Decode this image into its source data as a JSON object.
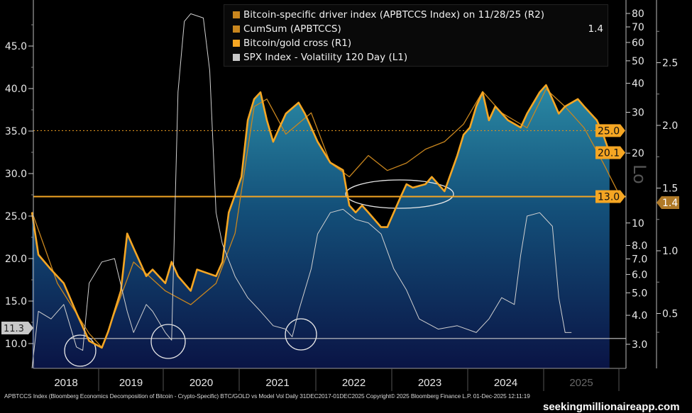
{
  "chart_data": {
    "type": "line",
    "legend_placement": "top-right",
    "grid": false,
    "x_axis": {
      "ticks": [
        "2018",
        "2019",
        "2020",
        "2021",
        "2022",
        "2023",
        "2024",
        "2025"
      ],
      "range": [
        "2017-12-31",
        "2025-12-01"
      ]
    },
    "axes": {
      "L1": {
        "ticks": [
          "10.0",
          "15.0",
          "20.0",
          "25.0",
          "30.0",
          "35.0",
          "40.0",
          "45.0"
        ],
        "scale": "linear",
        "range": [
          7,
          50
        ]
      },
      "R1": {
        "ticks": [
          "3.0",
          "4.0",
          "5.0",
          "6.0",
          "7.0",
          "8.0",
          "10",
          "20",
          "30",
          "40",
          "50",
          "60",
          "70",
          "80"
        ],
        "scale": "log",
        "range": [
          2.5,
          85
        ]
      },
      "R2": {
        "ticks": [
          "0.5",
          "1.0",
          "1.5",
          "2.0",
          "2.5"
        ],
        "scale": "linear",
        "range": [
          0.3,
          2.8
        ]
      }
    },
    "series": [
      {
        "name": "Bitcoin-specific driver index (APBTCCS Index) on 11/28/25 (R2)",
        "axis": "R2",
        "color": "#c9861e",
        "points": []
      },
      {
        "name": "CumSum (APBTCCS)",
        "axis": "R2",
        "color": "#c9861e",
        "last_value": "1.4",
        "points": [
          [
            "2018-02",
            1.31
          ],
          [
            "2018-06",
            0.74
          ],
          [
            "2018-11",
            0.34
          ],
          [
            "2019-01",
            0.23
          ],
          [
            "2019-06",
            0.91
          ],
          [
            "2019-11",
            0.68
          ],
          [
            "2020-03",
            0.57
          ],
          [
            "2020-07",
            0.74
          ],
          [
            "2020-10",
            1.14
          ],
          [
            "2021-01",
            2.15
          ],
          [
            "2021-03",
            2.21
          ],
          [
            "2021-06",
            1.93
          ],
          [
            "2021-10",
            2.1
          ],
          [
            "2022-01",
            1.7
          ],
          [
            "2022-04",
            1.59
          ],
          [
            "2022-07",
            1.76
          ],
          [
            "2022-10",
            1.64
          ],
          [
            "2023-01",
            1.7
          ],
          [
            "2023-04",
            1.81
          ],
          [
            "2023-07",
            1.87
          ],
          [
            "2023-10",
            2.01
          ],
          [
            "2024-01",
            2.27
          ],
          [
            "2024-04",
            2.1
          ],
          [
            "2024-08",
            1.98
          ],
          [
            "2024-11",
            2.29
          ],
          [
            "2025-02",
            2.15
          ],
          [
            "2025-05",
            1.98
          ],
          [
            "2025-08",
            1.7
          ],
          [
            "2025-11",
            1.4
          ]
        ]
      },
      {
        "name": "Bitcoin/gold cross (R1)",
        "axis": "R1",
        "color": "#f5a623",
        "last_value": "20.1",
        "points": [
          [
            "2018-02",
            11.1
          ],
          [
            "2018-03",
            7.3
          ],
          [
            "2018-05",
            6.3
          ],
          [
            "2018-07",
            5.5
          ],
          [
            "2018-09",
            4.1
          ],
          [
            "2018-11",
            3.1
          ],
          [
            "2019-01",
            2.9
          ],
          [
            "2019-02",
            3.4
          ],
          [
            "2019-04",
            5.1
          ],
          [
            "2019-05",
            9.0
          ],
          [
            "2019-06",
            7.8
          ],
          [
            "2019-08",
            5.9
          ],
          [
            "2019-09",
            6.3
          ],
          [
            "2019-11",
            5.5
          ],
          [
            "2019-12",
            6.8
          ],
          [
            "2020-01",
            5.9
          ],
          [
            "2020-03",
            5.1
          ],
          [
            "2020-04",
            6.3
          ],
          [
            "2020-07",
            5.9
          ],
          [
            "2020-08",
            6.8
          ],
          [
            "2020-09",
            11.1
          ],
          [
            "2020-11",
            15.8
          ],
          [
            "2020-12",
            27.7
          ],
          [
            "2021-01",
            34.2
          ],
          [
            "2021-02",
            36.6
          ],
          [
            "2021-03",
            27.7
          ],
          [
            "2021-04",
            22.4
          ],
          [
            "2021-05",
            25.8
          ],
          [
            "2021-06",
            29.6
          ],
          [
            "2021-08",
            33.0
          ],
          [
            "2021-09",
            29.6
          ],
          [
            "2021-10",
            25.8
          ],
          [
            "2021-11",
            22.4
          ],
          [
            "2022-01",
            18.2
          ],
          [
            "2022-03",
            16.9
          ],
          [
            "2022-04",
            11.9
          ],
          [
            "2022-05",
            11.1
          ],
          [
            "2022-06",
            11.9
          ],
          [
            "2022-07",
            11.1
          ],
          [
            "2022-09",
            9.6
          ],
          [
            "2022-10",
            9.6
          ],
          [
            "2022-12",
            12.8
          ],
          [
            "2023-01",
            14.7
          ],
          [
            "2023-02",
            14.2
          ],
          [
            "2023-04",
            14.7
          ],
          [
            "2023-05",
            15.8
          ],
          [
            "2023-07",
            13.7
          ],
          [
            "2023-09",
            19.5
          ],
          [
            "2023-10",
            24.0
          ],
          [
            "2023-11",
            25.8
          ],
          [
            "2023-12",
            31.8
          ],
          [
            "2024-01",
            36.6
          ],
          [
            "2024-02",
            27.7
          ],
          [
            "2024-03",
            31.8
          ],
          [
            "2024-05",
            27.7
          ],
          [
            "2024-07",
            25.8
          ],
          [
            "2024-08",
            29.6
          ],
          [
            "2024-10",
            36.6
          ],
          [
            "2024-11",
            39.3
          ],
          [
            "2024-12",
            34.2
          ],
          [
            "2025-01",
            29.6
          ],
          [
            "2025-02",
            31.8
          ],
          [
            "2025-04",
            34.2
          ],
          [
            "2025-05",
            31.8
          ],
          [
            "2025-07",
            27.7
          ],
          [
            "2025-08",
            24.0
          ],
          [
            "2025-09",
            20.1
          ]
        ]
      },
      {
        "name": "SPX Index - Volatility 120 Day (L1)",
        "axis": "L1",
        "color": "#d0d0d0",
        "last_value": "11.3",
        "points": [
          [
            "2018-02",
            7.1
          ],
          [
            "2018-03",
            13.8
          ],
          [
            "2018-05",
            12.9
          ],
          [
            "2018-07",
            14.6
          ],
          [
            "2018-09",
            9.6
          ],
          [
            "2018-10",
            9.2
          ],
          [
            "2018-11",
            17.1
          ],
          [
            "2019-01",
            19.6
          ],
          [
            "2019-03",
            20.0
          ],
          [
            "2019-05",
            13.8
          ],
          [
            "2019-06",
            11.3
          ],
          [
            "2019-08",
            14.6
          ],
          [
            "2019-09",
            13.8
          ],
          [
            "2019-11",
            11.3
          ],
          [
            "2019-12",
            10.4
          ],
          [
            "2020-01",
            39.6
          ],
          [
            "2020-02",
            47.9
          ],
          [
            "2020-03",
            48.8
          ],
          [
            "2020-05",
            48.3
          ],
          [
            "2020-06",
            42.1
          ],
          [
            "2020-07",
            25.4
          ],
          [
            "2020-08",
            21.7
          ],
          [
            "2020-10",
            17.9
          ],
          [
            "2020-12",
            15.4
          ],
          [
            "2021-02",
            13.8
          ],
          [
            "2021-04",
            12.1
          ],
          [
            "2021-06",
            11.7
          ],
          [
            "2021-07",
            10.8
          ],
          [
            "2021-08",
            13.8
          ],
          [
            "2021-10",
            18.8
          ],
          [
            "2021-11",
            22.9
          ],
          [
            "2022-01",
            25.4
          ],
          [
            "2022-03",
            25.8
          ],
          [
            "2022-05",
            24.6
          ],
          [
            "2022-07",
            24.2
          ],
          [
            "2022-09",
            22.9
          ],
          [
            "2022-11",
            18.8
          ],
          [
            "2023-01",
            16.3
          ],
          [
            "2023-03",
            12.9
          ],
          [
            "2023-06",
            11.7
          ],
          [
            "2023-09",
            12.1
          ],
          [
            "2023-12",
            11.3
          ],
          [
            "2024-02",
            12.9
          ],
          [
            "2024-04",
            15.4
          ],
          [
            "2024-06",
            14.6
          ],
          [
            "2024-07",
            20.4
          ],
          [
            "2024-08",
            25.0
          ],
          [
            "2024-10",
            25.4
          ],
          [
            "2024-12",
            23.8
          ],
          [
            "2025-01",
            15.4
          ],
          [
            "2025-02",
            11.3
          ],
          [
            "2025-03",
            11.3
          ]
        ]
      }
    ],
    "annotations": {
      "r1_levels": [
        {
          "value": 25.0,
          "label": "25.0",
          "style": "dotted"
        },
        {
          "value": 13.0,
          "label": "13.0",
          "style": "solid"
        }
      ],
      "r1_last_label": "20.1",
      "r2_last_label": "1.4",
      "l1_last_label": "11.3",
      "l1_level": 10.6,
      "axis_watermark": "Lo"
    }
  },
  "legend": {
    "value_label": "1.4"
  },
  "footer": "APBTCCS Index (Bloomberg Economics Decomposition of Bitcoin - Crypto-Specific) BTC/GOLD vs Model Vol Daily 31DEC2017-01DEC2025  Copyright© 2025 Bloomberg Finance L.P.  01-Dec-2025 12:11:19",
  "watermark": "seekingmillionaireapp.com"
}
